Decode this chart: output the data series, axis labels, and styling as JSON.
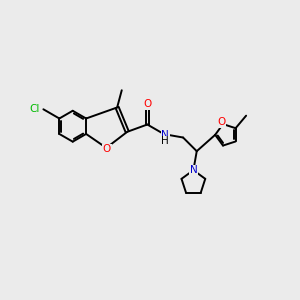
{
  "bg_color": "#ebebeb",
  "bond_color": "#000000",
  "atom_colors": {
    "O": "#ff0000",
    "N": "#0000cc",
    "Cl": "#00bb00",
    "C": "#000000",
    "H": "#000000"
  },
  "font_size": 7.5,
  "line_width": 1.4,
  "fig_size": [
    3.0,
    3.0
  ],
  "dpi": 100
}
